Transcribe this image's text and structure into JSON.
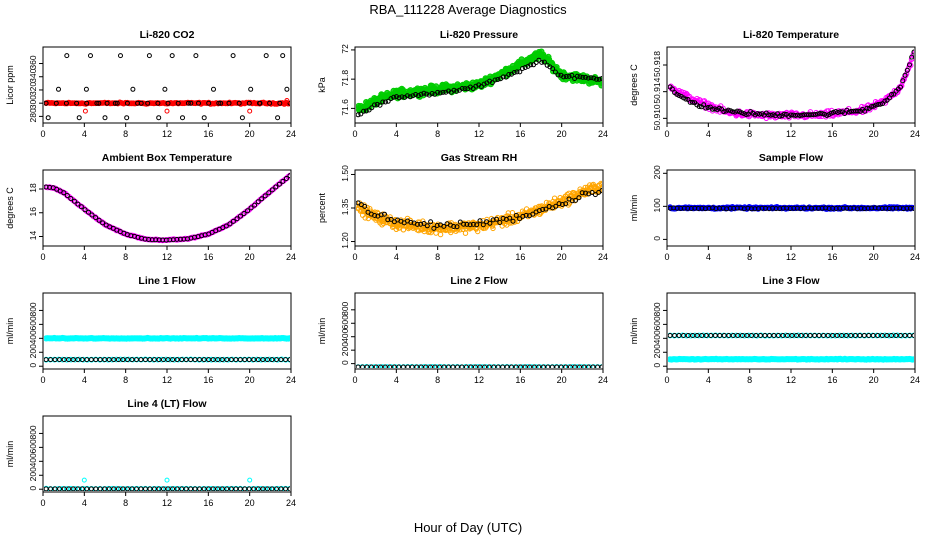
{
  "page": {
    "title": "RBA_111228  Average Diagnostics",
    "xlabel": "Hour of Day (UTC)"
  },
  "colors": {
    "axis": "#000000",
    "red": "#ff0000",
    "green": "#00cc00",
    "magenta": "#ff00ff",
    "orange": "#ffa500",
    "blue": "#0000ff",
    "cyan": "#00ffff",
    "black": "#000000"
  },
  "chart_data": [
    {
      "id": "li820-co2",
      "type": "scatter",
      "title": "Li-820 CO2",
      "ylabel": "Licor ppm",
      "xlim": [
        0,
        24
      ],
      "ylim": [
        270,
        385
      ],
      "yticks": [
        280,
        300,
        320,
        340,
        360
      ],
      "series": [
        {
          "name": "red",
          "color": "red",
          "model": "const",
          "params": [
            300,
            1.5
          ],
          "n": 130,
          "size": 2.4,
          "fill": true
        },
        {
          "name": "black-base",
          "color": "black",
          "model": "const",
          "params": [
            300,
            0
          ],
          "n": 25,
          "size": 2
        },
        {
          "name": "black-outliers",
          "color": "black",
          "model": "points",
          "points": [
            [
              0.5,
              278
            ],
            [
              1.5,
              321
            ],
            [
              2.3,
              372
            ],
            [
              3.5,
              278
            ],
            [
              4.2,
              321
            ],
            [
              4.6,
              372
            ],
            [
              5.4,
              300
            ],
            [
              6.0,
              278
            ],
            [
              7.0,
              300
            ],
            [
              7.5,
              372
            ],
            [
              8.1,
              278
            ],
            [
              8.7,
              321
            ],
            [
              9.5,
              300
            ],
            [
              10.3,
              372
            ],
            [
              11.2,
              278
            ],
            [
              11.8,
              321
            ],
            [
              12.5,
              372
            ],
            [
              13.5,
              278
            ],
            [
              14.3,
              300
            ],
            [
              14.8,
              372
            ],
            [
              15.6,
              278
            ],
            [
              16.5,
              321
            ],
            [
              17.2,
              300
            ],
            [
              18.4,
              372
            ],
            [
              19.3,
              278
            ],
            [
              20.1,
              321
            ],
            [
              21.0,
              300
            ],
            [
              21.6,
              372
            ],
            [
              22.7,
              278
            ],
            [
              23.2,
              372
            ],
            [
              23.6,
              321
            ]
          ]
        },
        {
          "name": "red-outliers",
          "color": "red",
          "model": "points",
          "points": [
            [
              4.1,
              288
            ],
            [
              12.0,
              288
            ],
            [
              20.0,
              288
            ],
            [
              23.6,
              304
            ]
          ]
        }
      ]
    },
    {
      "id": "li820-pressure",
      "type": "scatter",
      "title": "Li-820 Pressure",
      "ylabel": "kPa",
      "xlim": [
        0,
        24
      ],
      "ylim": [
        71.5,
        72.02
      ],
      "yticks": [
        71.6,
        71.8,
        72.0
      ],
      "series": [
        {
          "name": "green",
          "color": "green",
          "model": "knots",
          "noise": 0.04,
          "n": 420,
          "size": 2.6,
          "fill": true,
          "knots": [
            [
              0,
              71.58
            ],
            [
              2,
              71.65
            ],
            [
              4,
              71.7
            ],
            [
              8,
              71.73
            ],
            [
              12,
              71.76
            ],
            [
              16,
              71.9
            ],
            [
              18,
              71.97
            ],
            [
              20,
              71.83
            ],
            [
              24,
              71.78
            ]
          ]
        },
        {
          "name": "black",
          "color": "black",
          "model": "knots",
          "noise": 0.015,
          "n": 90,
          "size": 2,
          "knots": [
            [
              0,
              71.54
            ],
            [
              2,
              71.62
            ],
            [
              4,
              71.68
            ],
            [
              8,
              71.7
            ],
            [
              12,
              71.75
            ],
            [
              16,
              71.86
            ],
            [
              18,
              71.93
            ],
            [
              20,
              71.82
            ],
            [
              24,
              71.8
            ]
          ]
        }
      ]
    },
    {
      "id": "li820-temperature",
      "type": "scatter",
      "title": "Li-820 Temperature",
      "ylabel": "degrees C",
      "xlim": [
        0,
        24
      ],
      "ylim": [
        50.9093,
        50.9207
      ],
      "yticks": [
        50.91,
        50.914,
        50.918
      ],
      "ytickLabels": [
        "50.910",
        "50.914",
        "50.918"
      ],
      "series": [
        {
          "name": "magenta",
          "color": "magenta",
          "model": "knots",
          "noise": 0.0007,
          "n": 300,
          "size": 2.2,
          "knots": [
            [
              0,
              50.9155
            ],
            [
              1,
              50.914
            ],
            [
              3,
              50.9125
            ],
            [
              6,
              50.9108
            ],
            [
              10,
              50.9104
            ],
            [
              15,
              50.9105
            ],
            [
              19,
              50.9112
            ],
            [
              21,
              50.9125
            ],
            [
              22.5,
              50.9145
            ],
            [
              23.5,
              50.918
            ],
            [
              24,
              50.92
            ]
          ]
        },
        {
          "name": "black",
          "color": "black",
          "model": "knots",
          "noise": 0.0004,
          "n": 110,
          "size": 2,
          "knots": [
            [
              0,
              50.915
            ],
            [
              1,
              50.9135
            ],
            [
              3,
              50.912
            ],
            [
              6,
              50.911
            ],
            [
              10,
              50.9105
            ],
            [
              15,
              50.9106
            ],
            [
              19,
              50.9112
            ],
            [
              21,
              50.9125
            ],
            [
              22.5,
              50.9145
            ],
            [
              23.5,
              50.918
            ],
            [
              24,
              50.9205
            ]
          ]
        }
      ]
    },
    {
      "id": "ambient-box-temperature",
      "type": "scatter",
      "title": "Ambient Box Temperature",
      "ylabel": "degrees C",
      "xlim": [
        0,
        24
      ],
      "ylim": [
        13.2,
        19.6
      ],
      "yticks": [
        14,
        16,
        18
      ],
      "series": [
        {
          "name": "magenta",
          "color": "magenta",
          "model": "knots",
          "noise": 0.05,
          "n": 150,
          "size": 2.4,
          "knots": [
            [
              0,
              18.2
            ],
            [
              1,
              18.1
            ],
            [
              2,
              17.7
            ],
            [
              4,
              16.3
            ],
            [
              6,
              15.0
            ],
            [
              8,
              14.2
            ],
            [
              10,
              13.75
            ],
            [
              12,
              13.7
            ],
            [
              14,
              13.8
            ],
            [
              16,
              14.2
            ],
            [
              18,
              15.0
            ],
            [
              20,
              16.3
            ],
            [
              22,
              17.8
            ],
            [
              24,
              19.2
            ]
          ]
        },
        {
          "name": "black",
          "color": "black",
          "model": "knots",
          "noise": 0.02,
          "n": 70,
          "size": 2,
          "knots": [
            [
              0,
              18.2
            ],
            [
              1,
              18.1
            ],
            [
              2,
              17.7
            ],
            [
              4,
              16.3
            ],
            [
              6,
              15.0
            ],
            [
              8,
              14.2
            ],
            [
              10,
              13.75
            ],
            [
              12,
              13.7
            ],
            [
              14,
              13.8
            ],
            [
              16,
              14.2
            ],
            [
              18,
              15.0
            ],
            [
              20,
              16.3
            ],
            [
              22,
              17.8
            ],
            [
              24,
              19.2
            ]
          ]
        }
      ]
    },
    {
      "id": "gas-stream-rh",
      "type": "scatter",
      "title": "Gas Stream RH",
      "ylabel": "percent",
      "xlim": [
        0,
        24
      ],
      "ylim": [
        1.18,
        1.52
      ],
      "yticks": [
        1.2,
        1.35,
        1.5
      ],
      "ytickLabels": [
        "1.20",
        "1.35",
        "1.50"
      ],
      "series": [
        {
          "name": "orange",
          "color": "orange",
          "model": "knots",
          "noise": 0.035,
          "n": 480,
          "size": 2.2,
          "knots": [
            [
              0,
              1.36
            ],
            [
              2,
              1.31
            ],
            [
              4,
              1.28
            ],
            [
              8,
              1.26
            ],
            [
              12,
              1.27
            ],
            [
              16,
              1.31
            ],
            [
              20,
              1.38
            ],
            [
              22,
              1.42
            ],
            [
              24,
              1.45
            ]
          ]
        },
        {
          "name": "black",
          "color": "black",
          "model": "knots",
          "noise": 0.02,
          "n": 75,
          "size": 2,
          "knots": [
            [
              0,
              1.38
            ],
            [
              2,
              1.32
            ],
            [
              4,
              1.29
            ],
            [
              8,
              1.27
            ],
            [
              12,
              1.28
            ],
            [
              16,
              1.31
            ],
            [
              20,
              1.37
            ],
            [
              22,
              1.41
            ],
            [
              24,
              1.43
            ]
          ]
        }
      ]
    },
    {
      "id": "sample-flow",
      "type": "scatter",
      "title": "Sample Flow",
      "ylabel": "ml/min",
      "xlim": [
        0,
        24
      ],
      "ylim": [
        -20,
        210
      ],
      "yticks": [
        0,
        100,
        200
      ],
      "series": [
        {
          "name": "blue",
          "color": "blue",
          "model": "const",
          "params": [
            95,
            4
          ],
          "n": 220,
          "size": 2.4,
          "fill": true
        },
        {
          "name": "black",
          "color": "black",
          "model": "const",
          "params": [
            94,
            2
          ],
          "n": 70,
          "size": 2
        }
      ]
    },
    {
      "id": "line1-flow",
      "type": "scatter",
      "title": "Line 1 Flow",
      "ylabel": "ml/min",
      "xlim": [
        0,
        24
      ],
      "ylim": [
        -40,
        1050
      ],
      "yticks": [
        0,
        200,
        400,
        600,
        800
      ],
      "series": [
        {
          "name": "cyan-upper",
          "color": "cyan",
          "model": "const",
          "params": [
            400,
            6
          ],
          "n": 150,
          "size": 2.6,
          "fill": true
        },
        {
          "name": "cyan-lower",
          "color": "cyan",
          "model": "const",
          "params": [
            95,
            4
          ],
          "n": 60,
          "size": 2.4
        },
        {
          "name": "black",
          "color": "black",
          "model": "const",
          "params": [
            95,
            0
          ],
          "n": 55,
          "size": 2
        }
      ]
    },
    {
      "id": "line2-flow",
      "type": "scatter",
      "title": "Line 2 Flow",
      "ylabel": "ml/min",
      "xlim": [
        0,
        24
      ],
      "ylim": [
        -80,
        1050
      ],
      "yticks": [
        0,
        200,
        400,
        600,
        800
      ],
      "series": [
        {
          "name": "cyan",
          "color": "cyan",
          "model": "const",
          "params": [
            -50,
            2
          ],
          "n": 60,
          "size": 2.4
        },
        {
          "name": "black",
          "color": "black",
          "model": "const",
          "params": [
            -50,
            0
          ],
          "n": 55,
          "size": 2
        }
      ]
    },
    {
      "id": "line3-flow",
      "type": "scatter",
      "title": "Line 3 Flow",
      "ylabel": "ml/min",
      "xlim": [
        0,
        24
      ],
      "ylim": [
        -40,
        1050
      ],
      "yticks": [
        0,
        200,
        400,
        600,
        800
      ],
      "series": [
        {
          "name": "cyan-upper",
          "color": "cyan",
          "model": "const",
          "params": [
            440,
            3
          ],
          "n": 60,
          "size": 2.4
        },
        {
          "name": "black",
          "color": "black",
          "model": "const",
          "params": [
            440,
            0
          ],
          "n": 55,
          "size": 2
        },
        {
          "name": "cyan-lower",
          "color": "cyan",
          "model": "const",
          "params": [
            100,
            6
          ],
          "n": 160,
          "size": 2.6,
          "fill": true
        }
      ]
    },
    {
      "id": "line4-lt-flow",
      "type": "scatter",
      "title": "Line 4 (LT) Flow",
      "ylabel": "ml/min",
      "xlim": [
        0,
        24
      ],
      "ylim": [
        -40,
        1050
      ],
      "yticks": [
        0,
        200,
        400,
        600,
        800
      ],
      "series": [
        {
          "name": "cyan",
          "color": "cyan",
          "model": "const",
          "params": [
            5,
            3
          ],
          "n": 60,
          "size": 2.4
        },
        {
          "name": "black",
          "color": "black",
          "model": "const",
          "params": [
            5,
            0
          ],
          "n": 55,
          "size": 2
        },
        {
          "name": "cyan-spikes",
          "color": "cyan",
          "model": "points",
          "points": [
            [
              4,
              130
            ],
            [
              12,
              130
            ],
            [
              20,
              130
            ]
          ]
        }
      ]
    }
  ]
}
